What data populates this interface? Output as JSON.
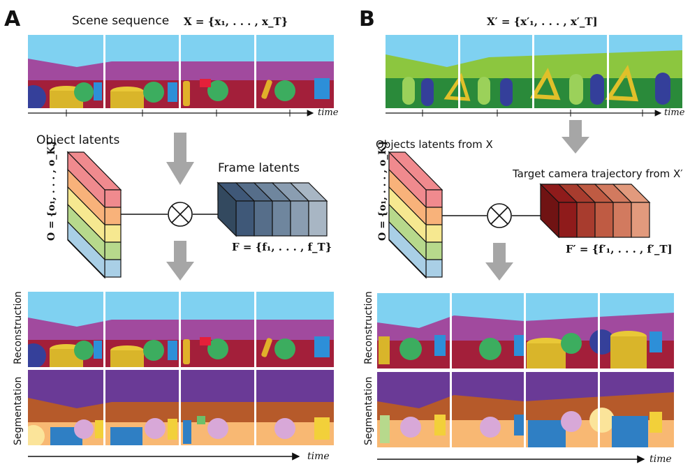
{
  "panels": {
    "A": {
      "letter": "A",
      "scene_sequence_label": "Scene sequence",
      "scene_sequence_math": "X = {x₁, . . . , x_T}",
      "time_top": "time",
      "object_latents_label": "Object latents",
      "object_latents_math": "O = {o₁, . . . , o_K}",
      "frame_latents_label": "Frame latents",
      "frame_latents_math": "F = {f₁, . . . , f_T}",
      "reconstruction_label": "Reconstruction",
      "segmentation_label": "Segmentation",
      "time_bottom": "time"
    },
    "B": {
      "letter": "B",
      "target_sequence_math": "X′ = {x′₁, . . . , x′_T]",
      "time_top": "time",
      "object_latents_label": "Objects latents from X",
      "object_latents_math": "O = {o₁, . . . , o_K}",
      "frame_latents_label": "Target camera trajectory from X′",
      "frame_latents_math": "F′ = {f′₁, . . . , f′_T]",
      "reconstruction_label": "Reconstruction",
      "segmentation_label": "Segmentation",
      "time_bottom": "time"
    }
  },
  "colors": {
    "object_slots": [
      "#f08a8e",
      "#f8b27a",
      "#f6e890",
      "#b7d98c",
      "#a9cfe6"
    ],
    "frame_latents_A": [
      "#3f5878",
      "#566e8a",
      "#6f869e",
      "#8a9db1",
      "#a8b6c4"
    ],
    "frame_latents_B": [
      "#8f1b1b",
      "#a83c2e",
      "#bf5b43",
      "#d27a5f",
      "#e29a7d"
    ],
    "arrow": "#a6a6a6"
  }
}
